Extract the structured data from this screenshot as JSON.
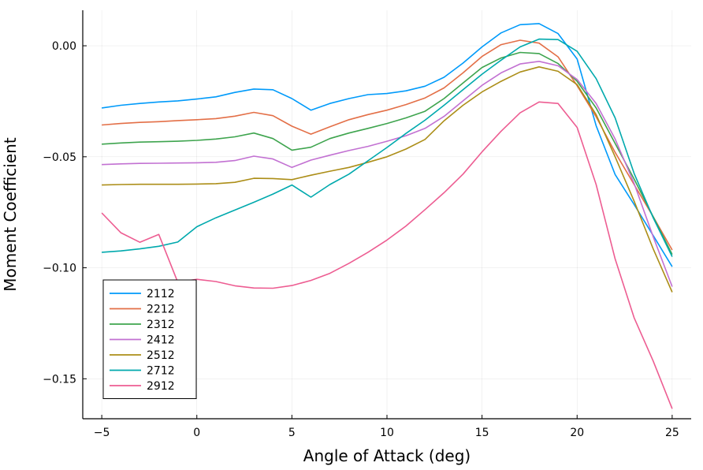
{
  "chart_data": {
    "type": "line",
    "title": "",
    "xlabel": "Angle of Attack (deg)",
    "ylabel": "Moment Coefficient",
    "xlim": [
      -6,
      26
    ],
    "ylim": [
      -0.168,
      0.016
    ],
    "xticks": [
      -5,
      0,
      5,
      10,
      15,
      20,
      25
    ],
    "xtick_labels": [
      "−5",
      "0",
      "5",
      "10",
      "15",
      "20",
      "25"
    ],
    "yticks": [
      0.0,
      -0.05,
      -0.1,
      -0.15
    ],
    "ytick_labels": [
      "0.00",
      "−0.05",
      "−0.10",
      "−0.15"
    ],
    "grid": true,
    "legend_position": "bottom-left",
    "x": [
      -5,
      -4,
      -3,
      -2,
      -1,
      0,
      1,
      2,
      3,
      4,
      5,
      6,
      7,
      8,
      9,
      10,
      11,
      12,
      13,
      14,
      15,
      16,
      17,
      18,
      19,
      20,
      21,
      22,
      23,
      24,
      25
    ],
    "series": [
      {
        "name": "2112",
        "color": "#009AFA",
        "values": [
          -0.028,
          -0.0268,
          -0.026,
          -0.0253,
          -0.0248,
          -0.024,
          -0.023,
          -0.021,
          -0.0195,
          -0.0198,
          -0.0238,
          -0.029,
          -0.026,
          -0.0238,
          -0.022,
          -0.0215,
          -0.0203,
          -0.0182,
          -0.0142,
          -0.0078,
          -0.0005,
          0.0058,
          0.0095,
          0.01,
          0.0055,
          -0.006,
          -0.036,
          -0.058,
          -0.0715,
          -0.0855,
          -0.0995
        ]
      },
      {
        "name": "2212",
        "color": "#E36F47",
        "values": [
          -0.0357,
          -0.035,
          -0.0345,
          -0.0342,
          -0.0337,
          -0.0333,
          -0.0328,
          -0.0317,
          -0.03,
          -0.0315,
          -0.0362,
          -0.0398,
          -0.0365,
          -0.0333,
          -0.031,
          -0.029,
          -0.0265,
          -0.0235,
          -0.019,
          -0.0122,
          -0.0048,
          0.0005,
          0.0025,
          0.0012,
          -0.005,
          -0.018,
          -0.032,
          -0.048,
          -0.0625,
          -0.077,
          -0.092
        ]
      },
      {
        "name": "2312",
        "color": "#3EA44E",
        "values": [
          -0.0443,
          -0.0438,
          -0.0434,
          -0.0432,
          -0.043,
          -0.0426,
          -0.042,
          -0.041,
          -0.0393,
          -0.0418,
          -0.047,
          -0.0457,
          -0.0418,
          -0.0393,
          -0.0372,
          -0.035,
          -0.0325,
          -0.0295,
          -0.0238,
          -0.0168,
          -0.0098,
          -0.0055,
          -0.003,
          -0.0035,
          -0.008,
          -0.016,
          -0.028,
          -0.044,
          -0.06,
          -0.077,
          -0.094
        ]
      },
      {
        "name": "2412",
        "color": "#C271D2",
        "values": [
          -0.0535,
          -0.0532,
          -0.053,
          -0.0529,
          -0.0528,
          -0.0527,
          -0.0525,
          -0.0517,
          -0.0497,
          -0.051,
          -0.0548,
          -0.0515,
          -0.0493,
          -0.0472,
          -0.0453,
          -0.043,
          -0.0405,
          -0.0372,
          -0.0318,
          -0.0248,
          -0.0178,
          -0.0122,
          -0.0082,
          -0.007,
          -0.009,
          -0.0152,
          -0.026,
          -0.042,
          -0.062,
          -0.086,
          -0.1085
        ]
      },
      {
        "name": "2512",
        "color": "#AC8E18",
        "values": [
          -0.0627,
          -0.0625,
          -0.0624,
          -0.0624,
          -0.0624,
          -0.0623,
          -0.0621,
          -0.0615,
          -0.0597,
          -0.0598,
          -0.0603,
          -0.0583,
          -0.0565,
          -0.0548,
          -0.0525,
          -0.05,
          -0.0465,
          -0.0422,
          -0.0338,
          -0.0268,
          -0.0208,
          -0.016,
          -0.0118,
          -0.0095,
          -0.0115,
          -0.0175,
          -0.031,
          -0.05,
          -0.07,
          -0.0915,
          -0.111
        ]
      },
      {
        "name": "2712",
        "color": "#00A9AD",
        "values": [
          -0.093,
          -0.0924,
          -0.0915,
          -0.0903,
          -0.0884,
          -0.0815,
          -0.0775,
          -0.074,
          -0.0705,
          -0.0668,
          -0.0627,
          -0.0682,
          -0.0625,
          -0.0578,
          -0.0518,
          -0.0458,
          -0.0395,
          -0.0335,
          -0.0268,
          -0.0198,
          -0.0128,
          -0.0065,
          -0.0005,
          0.003,
          0.0028,
          -0.0025,
          -0.0148,
          -0.0325,
          -0.0575,
          -0.0775,
          -0.095
        ]
      },
      {
        "name": "2912",
        "color": "#ED5D92",
        "values": [
          -0.0753,
          -0.0842,
          -0.0885,
          -0.085,
          -0.1065,
          -0.1052,
          -0.1062,
          -0.1081,
          -0.1091,
          -0.1092,
          -0.108,
          -0.1057,
          -0.1025,
          -0.098,
          -0.093,
          -0.0875,
          -0.0812,
          -0.0738,
          -0.0662,
          -0.0578,
          -0.0478,
          -0.0385,
          -0.0302,
          -0.0253,
          -0.026,
          -0.0368,
          -0.0625,
          -0.096,
          -0.1225,
          -0.142,
          -0.1635
        ]
      }
    ]
  }
}
